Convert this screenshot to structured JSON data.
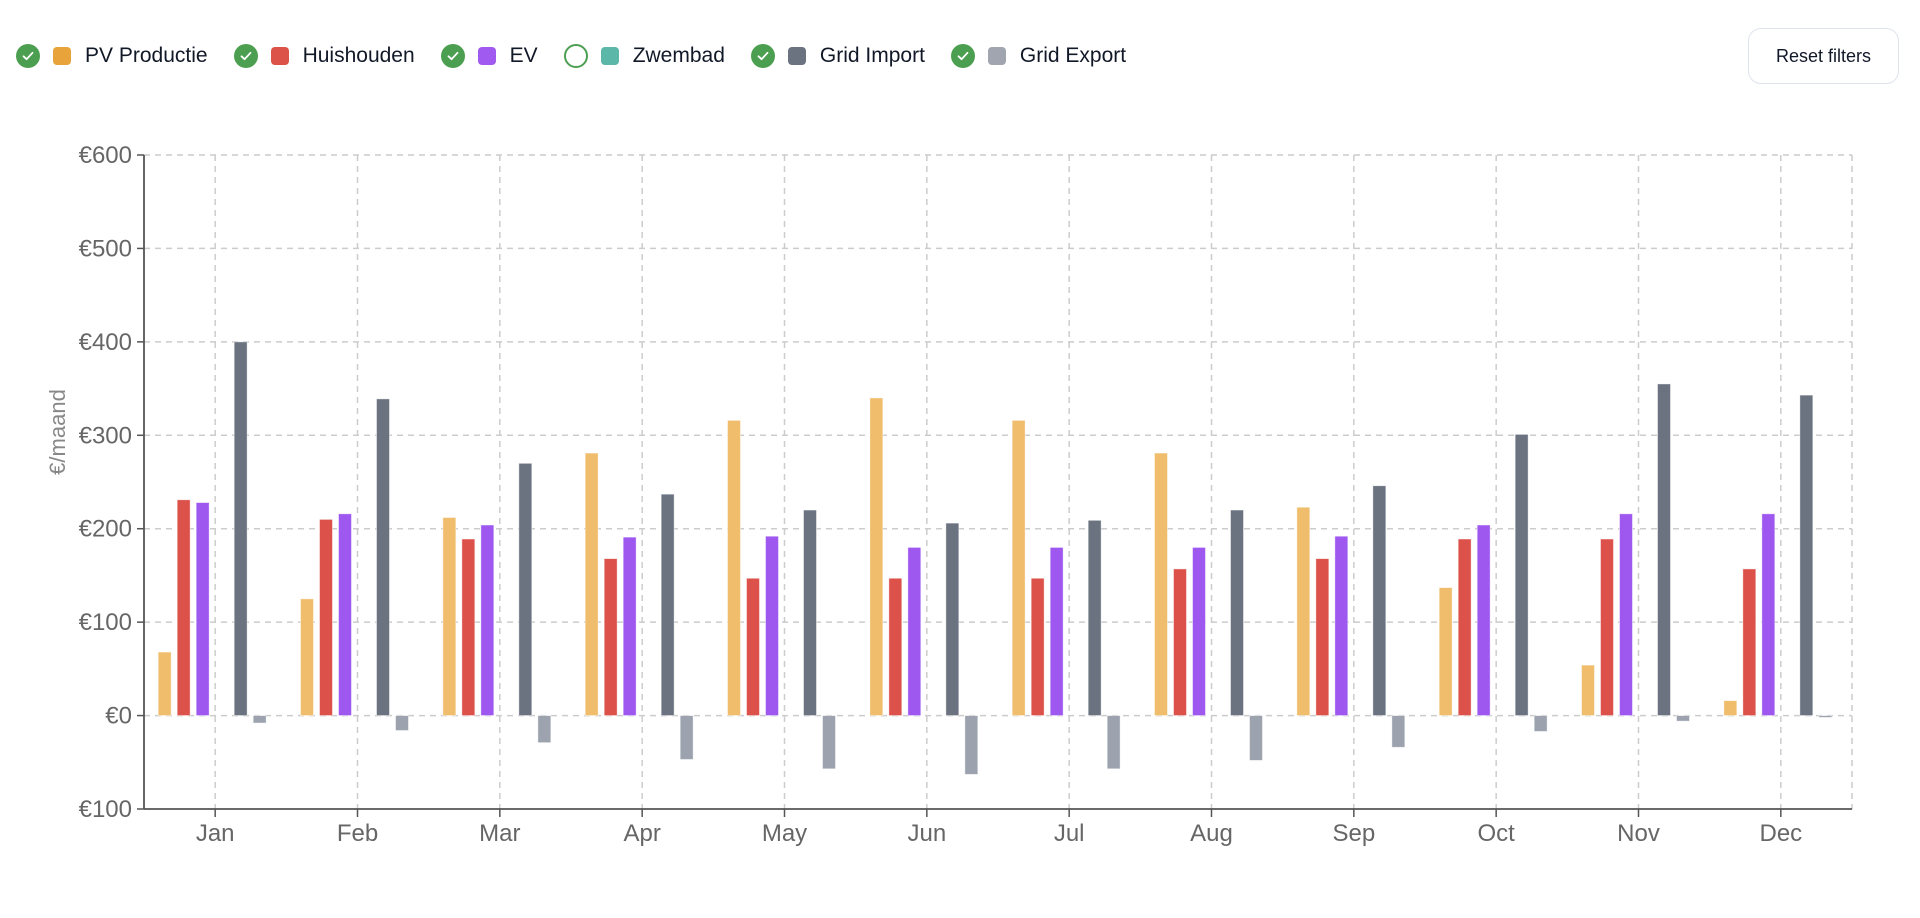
{
  "legend": [
    {
      "label": "PV Productie",
      "color": "#e8a33a",
      "bar_color": "#f0bd6c",
      "enabled": true,
      "icon": "check-circle-icon"
    },
    {
      "label": "Huishouden",
      "color": "#dc5349",
      "bar_color": "#dc524a",
      "enabled": true,
      "icon": "check-circle-icon"
    },
    {
      "label": "EV",
      "color": "#a05aef",
      "bar_color": "#9e58f0",
      "enabled": true,
      "icon": "check-circle-icon"
    },
    {
      "label": "Zwembad",
      "color": "#5bb7a8",
      "bar_color": "#5bb7a8",
      "enabled": false,
      "icon": "empty-circle-icon"
    },
    {
      "label": "Grid Import",
      "color": "#6b7280",
      "bar_color": "#6b7280",
      "enabled": true,
      "icon": "check-circle-icon"
    },
    {
      "label": "Grid Export",
      "color": "#a1a5b0",
      "bar_color": "#9ca3af",
      "enabled": true,
      "icon": "check-circle-icon"
    }
  ],
  "reset_button": {
    "label": "Reset filters"
  },
  "check_color": "#4c9f50",
  "chart_data": {
    "type": "bar",
    "title": "",
    "xlabel": "",
    "ylabel": "€/maand",
    "ylim": [
      -100,
      600
    ],
    "yticks": [
      600,
      500,
      400,
      300,
      200,
      100,
      0,
      -100
    ],
    "ytick_labels": [
      "€600",
      "€500",
      "€400",
      "€300",
      "€200",
      "€100",
      "€0",
      "€100"
    ],
    "grid": true,
    "categories": [
      "Jan",
      "Feb",
      "Mar",
      "Apr",
      "May",
      "Jun",
      "Jul",
      "Aug",
      "Sep",
      "Oct",
      "Nov",
      "Dec"
    ],
    "series": [
      {
        "name": "PV Productie",
        "values": [
          68,
          125,
          212,
          281,
          316,
          340,
          316,
          281,
          223,
          137,
          54,
          16
        ]
      },
      {
        "name": "Huishouden",
        "values": [
          231,
          210,
          189,
          168,
          147,
          147,
          147,
          157,
          168,
          189,
          189,
          157
        ]
      },
      {
        "name": "EV",
        "values": [
          228,
          216,
          204,
          191,
          192,
          180,
          180,
          180,
          192,
          204,
          216,
          216
        ]
      },
      {
        "name": "Zwembad",
        "values": null,
        "hidden": true
      },
      {
        "name": "Grid Import",
        "values": [
          400,
          339,
          270,
          237,
          220,
          206,
          209,
          220,
          246,
          301,
          355,
          343
        ]
      },
      {
        "name": "Grid Export",
        "values": [
          -8,
          -16,
          -29,
          -47,
          -57,
          -63,
          -57,
          -48,
          -34,
          -17,
          -6,
          -2
        ]
      }
    ]
  }
}
